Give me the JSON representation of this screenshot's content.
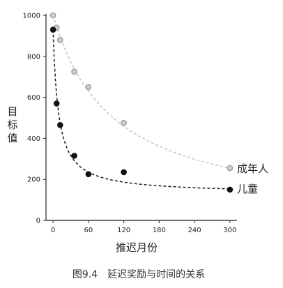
{
  "chart_data": {
    "type": "scatter",
    "xlabel": "推迟月份",
    "ylabel": "目标值",
    "caption": "图9.4　延迟奖励与时间的关系",
    "xlim": [
      -12,
      312
    ],
    "ylim": [
      0,
      1000
    ],
    "xticks": [
      0,
      60,
      120,
      180,
      240,
      300
    ],
    "yticks": [
      0,
      200,
      400,
      600,
      800,
      1000
    ],
    "grid": false,
    "legend": "inline labels at right end of each curve",
    "series": [
      {
        "name": "成年人",
        "marker": "circle",
        "fill": "#cccccc",
        "stroke": "#8a8a8a",
        "fit_line": "dashed",
        "fit_color": "#c4c4c4",
        "x": [
          0,
          6,
          12,
          36,
          60,
          120,
          300
        ],
        "y": [
          1000,
          940,
          880,
          725,
          650,
          475,
          255
        ]
      },
      {
        "name": "儿童",
        "marker": "circle",
        "fill": "#111111",
        "stroke": "#111111",
        "fit_line": "dashed",
        "fit_color": "#1a1a1a",
        "x": [
          0,
          6,
          12,
          36,
          60,
          120,
          300
        ],
        "y": [
          930,
          570,
          465,
          315,
          225,
          235,
          150
        ]
      }
    ]
  }
}
